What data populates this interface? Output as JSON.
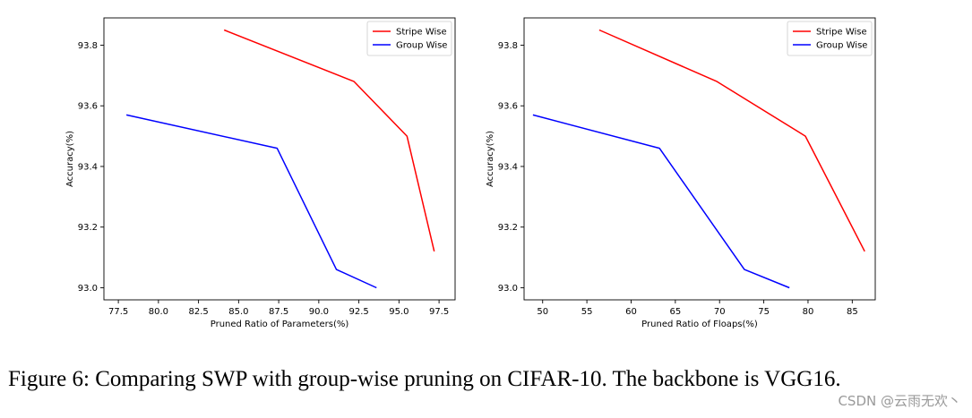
{
  "chart_data": [
    {
      "type": "line",
      "title": "",
      "xlabel": "Pruned Ratio of Parameters(%)",
      "ylabel": "Accuracy(%)",
      "xlim": [
        76.6,
        98.5
      ],
      "ylim": [
        92.96,
        93.89
      ],
      "xticks": [
        77.5,
        80.0,
        82.5,
        85.0,
        87.5,
        90.0,
        92.5,
        95.0,
        97.5
      ],
      "xtick_labels": [
        "77.5",
        "80.0",
        "82.5",
        "85.0",
        "87.5",
        "90.0",
        "92.5",
        "95.0",
        "97.5"
      ],
      "yticks": [
        93.0,
        93.2,
        93.4,
        93.6,
        93.8
      ],
      "ytick_labels": [
        "93.0",
        "93.2",
        "93.4",
        "93.6",
        "93.8"
      ],
      "legend_position": "top-right",
      "series": [
        {
          "name": "Stripe Wise",
          "color": "#ff0000",
          "x": [
            84.1,
            92.2,
            95.5,
            97.2
          ],
          "y": [
            93.85,
            93.68,
            93.5,
            93.12
          ]
        },
        {
          "name": "Group Wise",
          "color": "#0000ff",
          "x": [
            78.0,
            87.4,
            91.1,
            93.6
          ],
          "y": [
            93.57,
            93.46,
            93.06,
            93.0
          ]
        }
      ]
    },
    {
      "type": "line",
      "title": "",
      "xlabel": "Pruned Ratio of Floaps(%)",
      "ylabel": "Accuracy(%)",
      "xlim": [
        47.9,
        87.6
      ],
      "ylim": [
        92.96,
        93.89
      ],
      "xticks": [
        50,
        55,
        60,
        65,
        70,
        75,
        80,
        85
      ],
      "xtick_labels": [
        "50",
        "55",
        "60",
        "65",
        "70",
        "75",
        "80",
        "85"
      ],
      "yticks": [
        93.0,
        93.2,
        93.4,
        93.6,
        93.8
      ],
      "ytick_labels": [
        "93.0",
        "93.2",
        "93.4",
        "93.6",
        "93.8"
      ],
      "legend_position": "top-right",
      "series": [
        {
          "name": "Stripe Wise",
          "color": "#ff0000",
          "x": [
            56.4,
            69.7,
            79.7,
            86.4
          ],
          "y": [
            93.85,
            93.68,
            93.5,
            93.12
          ]
        },
        {
          "name": "Group Wise",
          "color": "#0000ff",
          "x": [
            48.9,
            63.2,
            72.8,
            77.9
          ],
          "y": [
            93.57,
            93.46,
            93.06,
            93.0
          ]
        }
      ]
    }
  ],
  "caption": "Figure 6: Comparing SWP with group-wise pruning on CIFAR-10. The backbone is VGG16.",
  "watermark": "CSDN @云雨无欢丶"
}
